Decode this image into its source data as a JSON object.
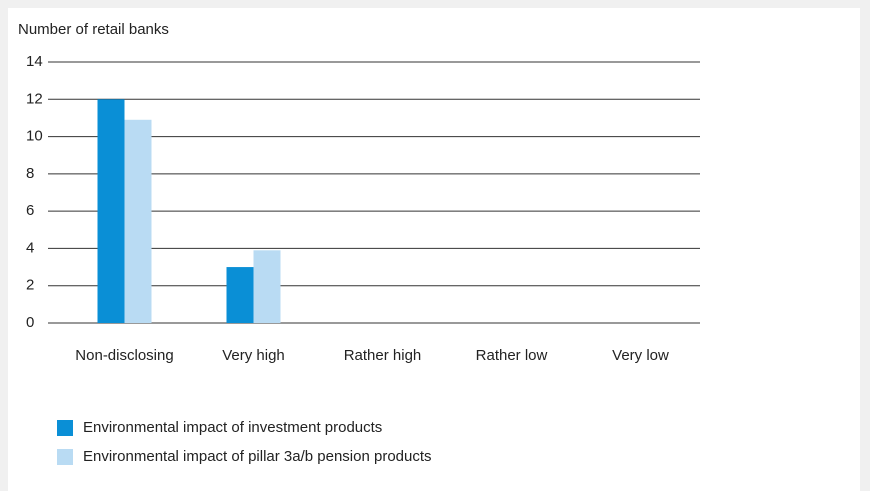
{
  "chart_data": {
    "type": "bar",
    "y_axis_label": "Number of retail banks",
    "categories": [
      "Non-disclosing",
      "Very high",
      "Rather high",
      "Rather low",
      "Very low"
    ],
    "series": [
      {
        "name": "Environmental impact of investment products",
        "color": "#0a8fd6",
        "values": [
          12,
          3,
          0,
          0,
          0
        ]
      },
      {
        "name": "Environmental impact of pillar 3a/b pension products",
        "color": "#b9dbf3",
        "values": [
          10.9,
          3.9,
          0,
          0,
          0
        ]
      }
    ],
    "ylim": [
      0,
      14
    ],
    "yticks": [
      0,
      2,
      4,
      6,
      8,
      10,
      12,
      14
    ],
    "grid": true
  }
}
